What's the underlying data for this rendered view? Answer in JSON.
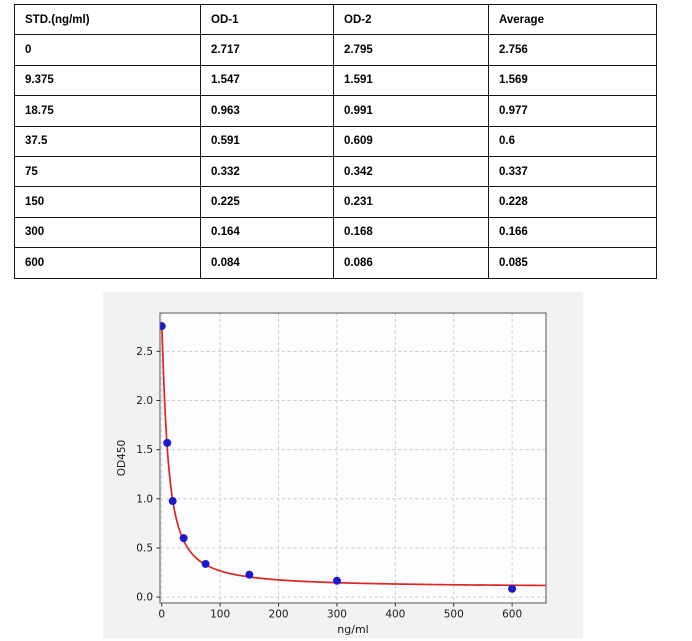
{
  "table": {
    "headers": [
      "STD.(ng/ml)",
      "OD-1",
      "OD-2",
      "Average"
    ],
    "rows": [
      [
        "0",
        "2.717",
        "2.795",
        "2.756"
      ],
      [
        "9.375",
        "1.547",
        "1.591",
        "1.569"
      ],
      [
        "18.75",
        "0.963",
        "0.991",
        "0.977"
      ],
      [
        "37.5",
        "0.591",
        "0.609",
        "0.6"
      ],
      [
        "75",
        "0.332",
        "0.342",
        "0.337"
      ],
      [
        "150",
        "0.225",
        "0.231",
        "0.228"
      ],
      [
        "300",
        "0.164",
        "0.168",
        "0.166"
      ],
      [
        "600",
        "0.084",
        "0.086",
        "0.085"
      ]
    ]
  },
  "chart_data": {
    "type": "scatter",
    "title": "",
    "xlabel": "ng/ml",
    "ylabel": "OD450",
    "points": [
      [
        0,
        2.756
      ],
      [
        9.375,
        1.569
      ],
      [
        18.75,
        0.977
      ],
      [
        37.5,
        0.6
      ],
      [
        75,
        0.337
      ],
      [
        150,
        0.228
      ],
      [
        300,
        0.166
      ],
      [
        600,
        0.085
      ]
    ],
    "fit_curve": {
      "model": "4PL",
      "a": 2.76,
      "b": 1.2,
      "c": 10.5,
      "d": 0.1
    },
    "xlim": [
      -3,
      658
    ],
    "ylim": [
      -0.06,
      2.89
    ],
    "xticks": [
      0,
      100,
      200,
      300,
      400,
      500,
      600
    ],
    "yticks": [
      0,
      0.5,
      1,
      1.5,
      2,
      2.5
    ],
    "grid": true,
    "colors": {
      "point": "#1d17cd",
      "curve": "#dd2525",
      "grid": "#cbcbcb",
      "spine": "#555555",
      "figure_bg": "#f2f2f2",
      "plot_bg": "#fdfdfd",
      "text": "#1a1a1a"
    }
  }
}
